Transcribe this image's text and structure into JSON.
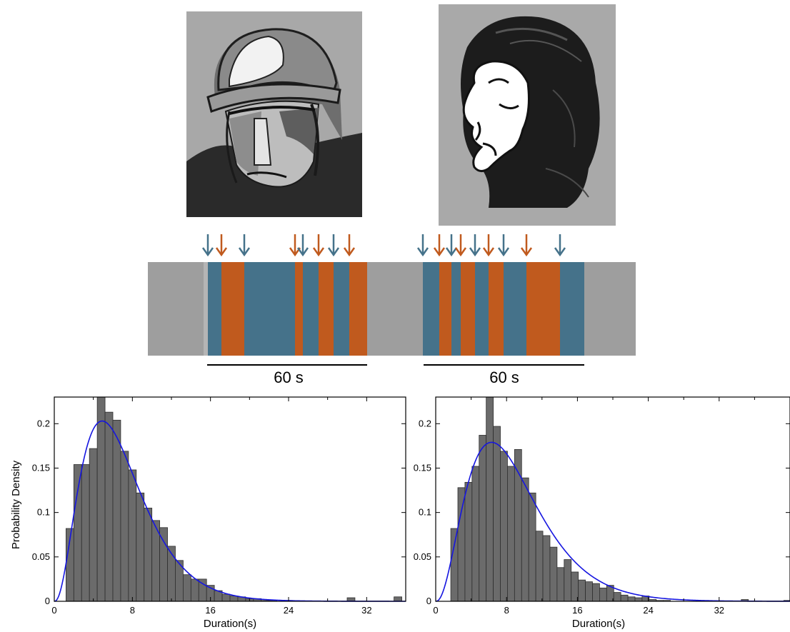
{
  "figure": {
    "left_image_name": "fireman-illustration",
    "right_image_name": "profile-woman-illustration"
  },
  "timeline": {
    "label_left": "60 s",
    "label_right": "60 s",
    "colors": {
      "background": "#9e9e9e",
      "blue": "#45728a",
      "orange": "#c05a1e"
    },
    "segments_left": [
      "blue",
      "orange",
      "blue",
      "orange",
      "blue",
      "orange",
      "blue",
      "orange"
    ],
    "segments_right": [
      "blue",
      "orange",
      "blue",
      "orange",
      "blue",
      "orange",
      "blue",
      "orange",
      "blue"
    ]
  },
  "chart_data": [
    {
      "type": "bar",
      "title": "",
      "xlabel": "Duration(s)",
      "ylabel": "Probability Density",
      "xlim": [
        0,
        36
      ],
      "ylim": [
        0,
        0.23
      ],
      "xticks": [
        "0",
        "8",
        "16",
        "24",
        "32"
      ],
      "yticks": [
        "0",
        "0.05",
        "0.1",
        "0.15",
        "0.2"
      ],
      "bin_width": 0.8,
      "bin_start": 1.2,
      "values": [
        0.082,
        0.154,
        0.154,
        0.172,
        0.232,
        0.213,
        0.204,
        0.169,
        0.148,
        0.122,
        0.105,
        0.091,
        0.083,
        0.062,
        0.046,
        0.03,
        0.025,
        0.025,
        0.018,
        0.012,
        0.008,
        0.006,
        0.005,
        0.003,
        0.003,
        0.001,
        0.001,
        0.0,
        0.001,
        0.0,
        0.0,
        0.0,
        0.0,
        0.0,
        0.0,
        0.0,
        0.004,
        0.0,
        0.0,
        0.0,
        0.0,
        0.0,
        0.005
      ],
      "fit_curve": {
        "color": "#1515e0",
        "mode_x": 4.9,
        "peak_y": 0.203
      },
      "bar_color": "#6b6b6b",
      "grid": false
    },
    {
      "type": "bar",
      "title": "",
      "xlabel": "Duration(s)",
      "ylabel": "",
      "xlim": [
        0,
        40
      ],
      "ylim": [
        0,
        0.23
      ],
      "xticks": [
        "0",
        "8",
        "16",
        "24",
        "32"
      ],
      "yticks": [
        "0",
        "0.05",
        "0.1",
        "0.15",
        "0.2"
      ],
      "bin_width": 0.8,
      "bin_start": 1.7,
      "values": [
        0.082,
        0.128,
        0.134,
        0.152,
        0.187,
        0.232,
        0.197,
        0.169,
        0.152,
        0.171,
        0.139,
        0.122,
        0.079,
        0.074,
        0.061,
        0.038,
        0.047,
        0.033,
        0.024,
        0.022,
        0.02,
        0.015,
        0.018,
        0.01,
        0.007,
        0.005,
        0.004,
        0.006,
        0.002,
        0.001,
        0.001,
        0.0,
        0.0,
        0.0,
        0.0,
        0.0,
        0.0,
        0.0,
        0.0,
        0.0,
        0.0,
        0.002,
        0.0,
        0.0,
        0.0,
        0.0,
        0.0,
        0.001
      ],
      "fit_curve": {
        "color": "#1515e0",
        "mode_x": 6.3,
        "peak_y": 0.179
      },
      "bar_color": "#6b6b6b",
      "grid": false
    }
  ]
}
